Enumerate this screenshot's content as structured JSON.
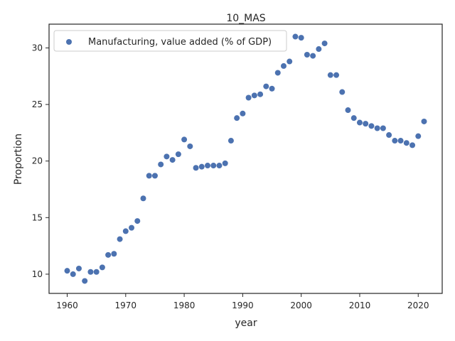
{
  "chart_data": {
    "type": "scatter",
    "title": "10_MAS",
    "xlabel": "year",
    "ylabel": "Proportion",
    "xlim": [
      1956.9,
      2024.1
    ],
    "ylim": [
      8.3,
      32.1
    ],
    "xticks": [
      1960,
      1970,
      1980,
      1990,
      2000,
      2010,
      2020
    ],
    "yticks": [
      10,
      15,
      20,
      25,
      30
    ],
    "grid": false,
    "legend_position": "top-left",
    "series": [
      {
        "name": "Manufacturing, value added (% of GDP)",
        "color": "#4c72b0",
        "x": [
          1960,
          1961,
          1962,
          1963,
          1964,
          1965,
          1966,
          1967,
          1968,
          1969,
          1970,
          1971,
          1972,
          1973,
          1974,
          1975,
          1976,
          1977,
          1978,
          1979,
          1980,
          1981,
          1982,
          1983,
          1984,
          1985,
          1986,
          1987,
          1988,
          1989,
          1990,
          1991,
          1992,
          1993,
          1994,
          1995,
          1996,
          1997,
          1998,
          1999,
          2000,
          2001,
          2002,
          2003,
          2004,
          2005,
          2006,
          2007,
          2008,
          2009,
          2010,
          2011,
          2012,
          2013,
          2014,
          2015,
          2016,
          2017,
          2018,
          2019,
          2020,
          2021
        ],
        "y": [
          10.3,
          10.0,
          10.5,
          9.4,
          10.2,
          10.2,
          10.6,
          11.7,
          11.8,
          13.1,
          13.8,
          14.1,
          14.7,
          16.7,
          18.7,
          18.7,
          19.7,
          20.4,
          20.1,
          20.6,
          21.9,
          21.3,
          19.4,
          19.5,
          19.6,
          19.6,
          19.6,
          19.8,
          21.8,
          23.8,
          24.2,
          25.6,
          25.8,
          25.9,
          26.6,
          26.4,
          27.8,
          28.4,
          28.8,
          31.0,
          30.9,
          29.4,
          29.3,
          29.9,
          30.4,
          27.6,
          27.6,
          26.1,
          24.5,
          23.8,
          23.4,
          23.3,
          23.1,
          22.9,
          22.9,
          22.3,
          21.8,
          21.8,
          21.6,
          21.4,
          22.2,
          23.5
        ]
      }
    ]
  }
}
